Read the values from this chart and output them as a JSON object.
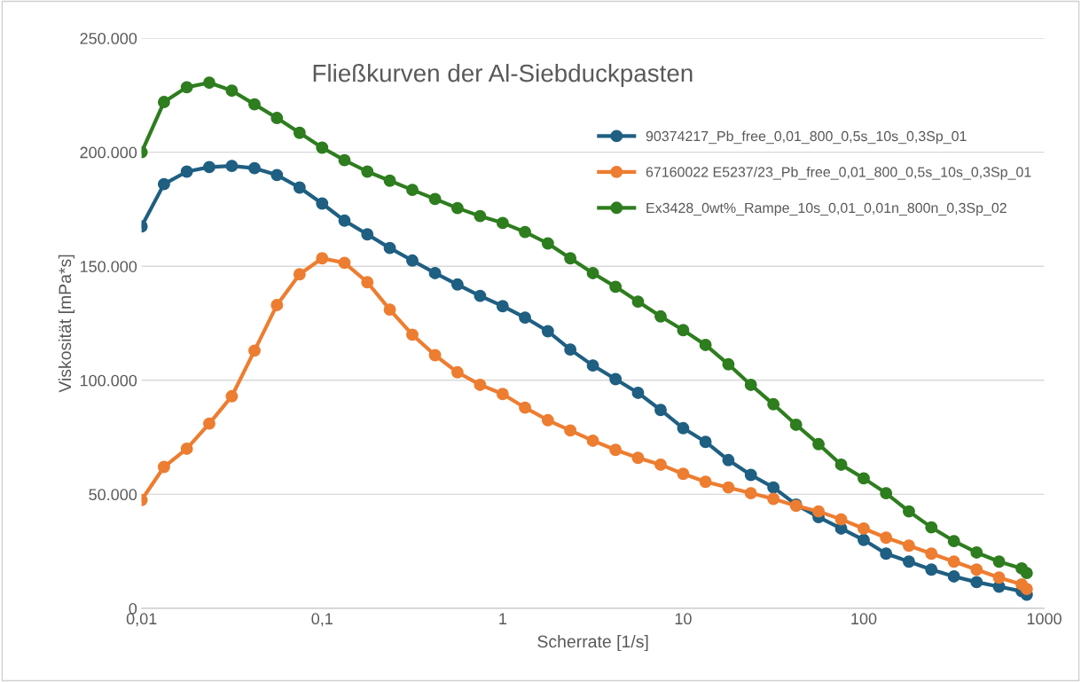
{
  "chart_data": {
    "type": "line",
    "title": "Fließkurven der Al-Siebduckpasten",
    "xlabel": "Scherrate [1/s]",
    "ylabel": "Viskosität [mPa*s]",
    "log": "x",
    "grid": "y",
    "legend": "top right",
    "marker": "circle",
    "line_style": "solid",
    "x": [
      0.01,
      0.0133,
      0.0178,
      0.0237,
      0.0316,
      0.0422,
      0.0562,
      0.075,
      0.1,
      0.133,
      0.178,
      0.237,
      0.316,
      0.422,
      0.562,
      0.75,
      1,
      1.33,
      1.78,
      2.37,
      3.16,
      4.22,
      5.62,
      7.5,
      10,
      13.3,
      17.8,
      23.7,
      31.6,
      42.2,
      56.2,
      75,
      100,
      133,
      178,
      237,
      316,
      422,
      562,
      750,
      800
    ],
    "xlim": [
      0.01,
      1000
    ],
    "xticks": [
      {
        "value": 0.01,
        "label": "0,01"
      },
      {
        "value": 0.1,
        "label": "0,1"
      },
      1,
      10,
      100,
      1000
    ],
    "ylim": [
      0,
      250000
    ],
    "yticks": [
      0,
      {
        "value": 50000,
        "label": "50.000"
      },
      {
        "value": 100000,
        "label": "100.000"
      },
      {
        "value": 150000,
        "label": "150.000"
      },
      {
        "value": 200000,
        "label": "200.000"
      },
      {
        "value": 250000,
        "label": "250.000"
      }
    ],
    "series": [
      {
        "name": "90374217_Pb_free_0,01_800_0,5s_10s_0,3Sp_01",
        "color": "#1f5f82",
        "values": [
          167500,
          186000,
          191500,
          193500,
          194000,
          193000,
          190000,
          184500,
          177500,
          170000,
          164000,
          158000,
          152500,
          147000,
          142000,
          137000,
          132500,
          127500,
          121500,
          113500,
          106500,
          100500,
          94500,
          87000,
          79000,
          73000,
          65000,
          58500,
          53000,
          45500,
          40000,
          35000,
          30000,
          24000,
          20500,
          17000,
          14000,
          11500,
          9500,
          7500,
          6000
        ]
      },
      {
        "name": "67160022 E5237/23_Pb_free_0,01_800_0,5s_10s_0,3Sp_01",
        "color": "#ed7d31",
        "values": [
          47500,
          62000,
          70000,
          81000,
          93000,
          113000,
          133000,
          146500,
          153500,
          151500,
          143000,
          131000,
          120000,
          111000,
          103500,
          98000,
          94000,
          88000,
          82500,
          78000,
          73500,
          69500,
          66000,
          63000,
          59000,
          55500,
          53000,
          50500,
          48000,
          45000,
          42500,
          39000,
          35000,
          31000,
          27500,
          24000,
          20500,
          17000,
          13500,
          10500,
          8500
        ]
      },
      {
        "name": "Ex3428_0wt%_Rampe_10s_0,01_0,01n_800n_0,3Sp_02",
        "color": "#2e7d1f",
        "values": [
          200000,
          222000,
          228500,
          230500,
          227000,
          221000,
          215000,
          208500,
          202000,
          196500,
          191500,
          187500,
          183500,
          179500,
          175500,
          172000,
          169000,
          165000,
          160000,
          153500,
          147000,
          141000,
          134500,
          128000,
          122000,
          115500,
          107000,
          98000,
          89500,
          80500,
          72000,
          63000,
          57000,
          50500,
          42500,
          35500,
          29500,
          24500,
          20500,
          17500,
          15500
        ]
      }
    ]
  }
}
